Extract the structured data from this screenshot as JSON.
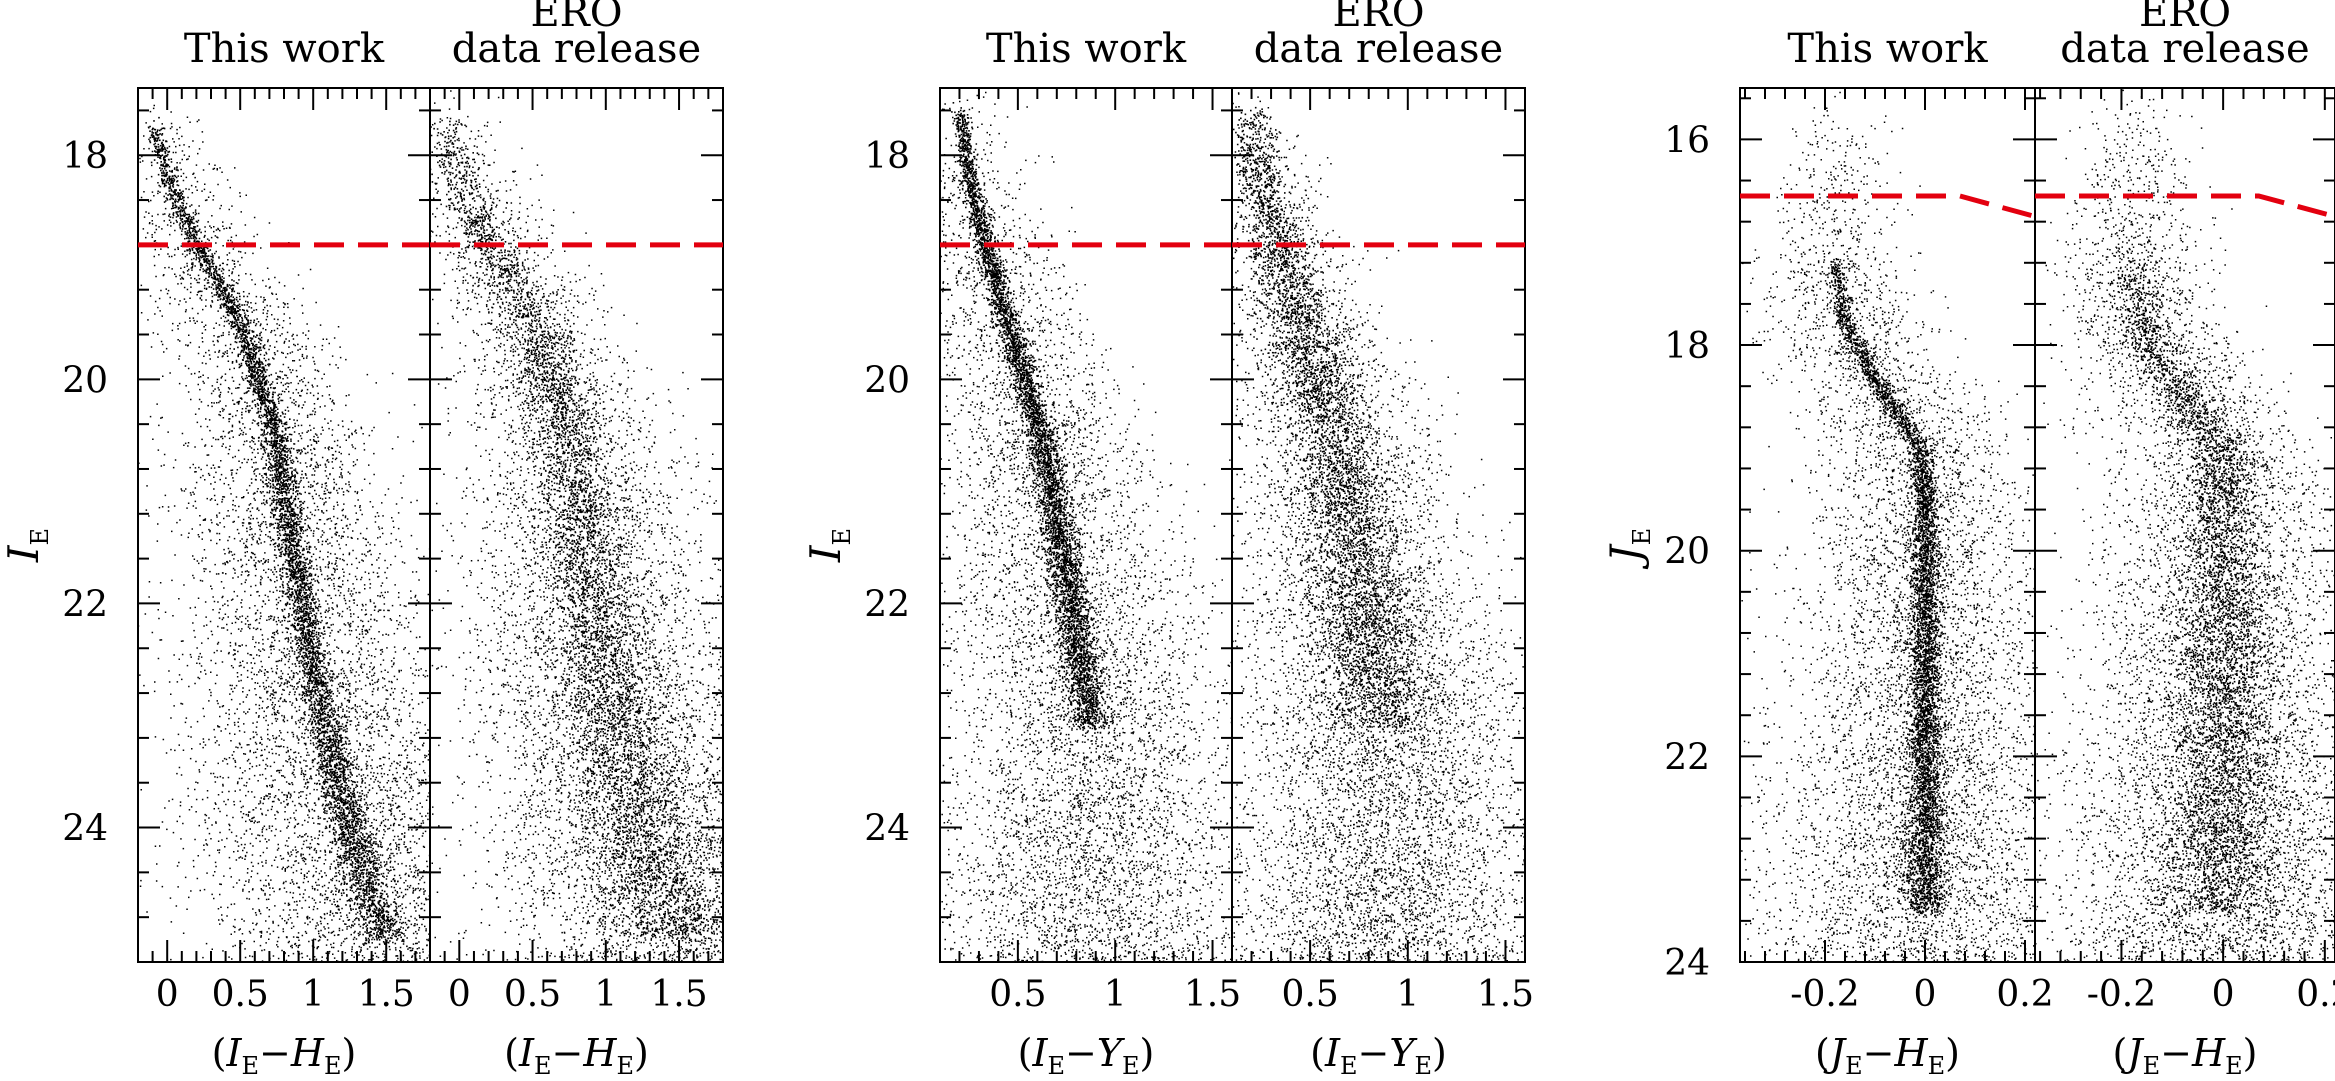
{
  "chart_data": [
    {
      "type": "scatter",
      "label_left": "This work",
      "label_right_top": "ERO",
      "label_right": "data release",
      "y_axis_letter": "I",
      "y_axis_sub": "E",
      "x_axis_a": "I",
      "x_axis_a_sub": "E",
      "x_axis_b": "H",
      "x_axis_b_sub": "E",
      "xlim": [
        -0.2,
        1.8
      ],
      "ylim": [
        25.2,
        17.4
      ],
      "x_ticks_major": [
        0,
        0.5,
        1,
        1.5
      ],
      "x_tick_labels": [
        "0",
        "0.5",
        "1",
        "1.5"
      ],
      "y_ticks_major": [
        18,
        20,
        22,
        24
      ],
      "y_tick_labels": [
        "18",
        "20",
        "22",
        "24"
      ],
      "threshold_line": {
        "color": "#e3000f",
        "y": [
          18.8,
          18.8
        ],
        "x": [
          -0.2,
          1.8
        ]
      },
      "sequence": {
        "mag": [
          17.7,
          18.2,
          18.8,
          19.5,
          20.5,
          21.5,
          22.5,
          23.5,
          24.5,
          25.0
        ],
        "color": [
          -0.1,
          0.0,
          0.2,
          0.5,
          0.75,
          0.85,
          0.98,
          1.15,
          1.35,
          1.5
        ]
      },
      "grid": false
    },
    {
      "type": "scatter",
      "label_left": "This work",
      "label_right_top": "ERO",
      "label_right": "data release",
      "y_axis_letter": "I",
      "y_axis_sub": "E",
      "x_axis_a": "I",
      "x_axis_a_sub": "E",
      "x_axis_b": "Y",
      "x_axis_b_sub": "E",
      "xlim": [
        0.1,
        1.6
      ],
      "ylim": [
        25.2,
        17.4
      ],
      "x_ticks_major": [
        0.5,
        1,
        1.5
      ],
      "x_tick_labels": [
        "0.5",
        "1",
        "1.5"
      ],
      "y_ticks_major": [
        18,
        20,
        22,
        24
      ],
      "y_tick_labels": [
        "18",
        "20",
        "22",
        "24"
      ],
      "threshold_line": {
        "color": "#e3000f",
        "y": [
          18.8,
          18.8
        ],
        "x": [
          0.1,
          1.6
        ]
      },
      "sequence": {
        "mag": [
          17.6,
          18.2,
          18.8,
          19.5,
          20.5,
          21.5,
          22.5,
          23.1
        ],
        "color": [
          0.2,
          0.25,
          0.33,
          0.45,
          0.62,
          0.72,
          0.82,
          0.88
        ]
      },
      "grid": false
    },
    {
      "type": "scatter",
      "label_left": "This work",
      "label_right_top": "ERO",
      "label_right": "data release",
      "y_axis_letter": "J",
      "y_axis_sub": "E",
      "x_axis_a": "J",
      "x_axis_a_sub": "E",
      "x_axis_b": "H",
      "x_axis_b_sub": "E",
      "xlim": [
        -0.37,
        0.22
      ],
      "ylim": [
        24,
        15.5
      ],
      "x_ticks_major": [
        -0.2,
        0,
        0.2
      ],
      "x_tick_labels": [
        "-0.2",
        "0",
        "0.2"
      ],
      "y_ticks_major": [
        16,
        18,
        20,
        22,
        24
      ],
      "y_tick_labels": [
        "16",
        "18",
        "20",
        "22",
        "24"
      ],
      "threshold_line": {
        "color": "#e3000f",
        "y": [
          16.55,
          16.55,
          16.75
        ],
        "x": [
          -0.37,
          0.07,
          0.22
        ]
      },
      "sequence": {
        "mag": [
          17.2,
          17.8,
          18.5,
          19.0,
          19.5,
          20.5,
          21.5,
          22.5,
          23.5
        ],
        "color": [
          -0.18,
          -0.16,
          -0.08,
          -0.01,
          0.0,
          0.0,
          0.0,
          0.0,
          0.0
        ]
      },
      "grid": false
    }
  ]
}
